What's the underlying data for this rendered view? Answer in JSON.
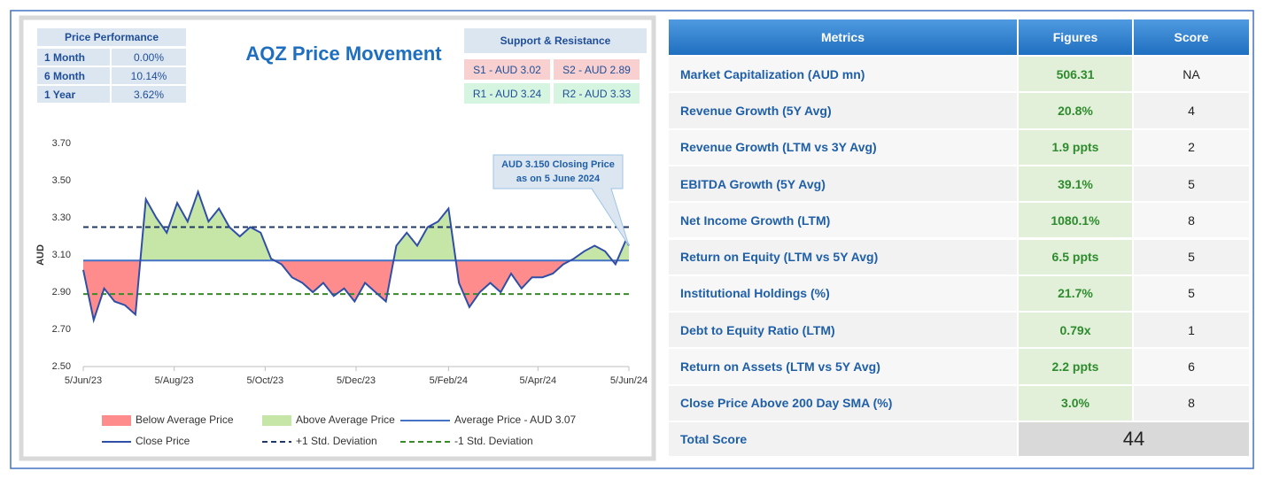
{
  "chart_data": {
    "type": "line",
    "title": "AQZ Price Movement",
    "ylabel": "AUD",
    "x": [
      "5/Jun/23",
      "12/Jun/23",
      "19/Jun/23",
      "26/Jun/23",
      "3/Jul/23",
      "10/Jul/23",
      "17/Jul/23",
      "24/Jul/23",
      "31/Jul/23",
      "7/Aug/23",
      "14/Aug/23",
      "21/Aug/23",
      "28/Aug/23",
      "4/Sep/23",
      "11/Sep/23",
      "18/Sep/23",
      "25/Sep/23",
      "2/Oct/23",
      "9/Oct/23",
      "16/Oct/23",
      "23/Oct/23",
      "30/Oct/23",
      "6/Nov/23",
      "13/Nov/23",
      "20/Nov/23",
      "27/Nov/23",
      "4/Dec/23",
      "11/Dec/23",
      "18/Dec/23",
      "25/Dec/23",
      "1/Jan/24",
      "8/Jan/24",
      "15/Jan/24",
      "22/Jan/24",
      "29/Jan/24",
      "5/Feb/24",
      "12/Feb/24",
      "19/Feb/24",
      "26/Feb/24",
      "4/Mar/24",
      "11/Mar/24",
      "18/Mar/24",
      "25/Mar/24",
      "1/Apr/24",
      "8/Apr/24",
      "15/Apr/24",
      "22/Apr/24",
      "29/Apr/24",
      "6/May/24",
      "13/May/24",
      "20/May/24",
      "27/May/24",
      "3/Jun/24",
      "5/Jun/24"
    ],
    "series": [
      {
        "name": "Close Price",
        "color": "#2f4ea8",
        "values": [
          3.02,
          2.75,
          2.92,
          2.85,
          2.83,
          2.78,
          3.4,
          3.3,
          3.22,
          3.38,
          3.28,
          3.44,
          3.28,
          3.35,
          3.25,
          3.2,
          3.25,
          3.22,
          3.08,
          3.05,
          2.98,
          2.95,
          2.9,
          2.95,
          2.88,
          2.92,
          2.85,
          2.95,
          2.9,
          2.85,
          3.15,
          3.22,
          3.15,
          3.25,
          3.28,
          3.35,
          2.95,
          2.82,
          2.9,
          2.95,
          2.9,
          3.0,
          2.92,
          2.98,
          2.98,
          3.0,
          3.05,
          3.08,
          3.12,
          3.15,
          3.12,
          3.05,
          3.18,
          3.15
        ]
      }
    ],
    "reference_lines": [
      {
        "name": "Average Price - AUD 3.07",
        "value": 3.07,
        "color": "#4472c4",
        "dash": false
      },
      {
        "name": "+1 Std. Deviation",
        "value": 3.25,
        "color": "#1f3864",
        "dash": true
      },
      {
        "name": "-1 Std. Deviation",
        "value": 2.89,
        "color": "#3a8a2a",
        "dash": true
      }
    ],
    "fills": [
      {
        "name": "Below Average Price",
        "color": "#ff8c8c",
        "side": "below"
      },
      {
        "name": "Above Average Price",
        "color": "#c6e6a8",
        "side": "above"
      }
    ],
    "xlim": [
      "5/Jun/23",
      "5/Jun/24"
    ],
    "xticks": [
      "5/Jun/23",
      "5/Aug/23",
      "5/Oct/23",
      "5/Dec/23",
      "5/Feb/24",
      "5/Apr/24",
      "5/Jun/24"
    ],
    "ylim": [
      2.5,
      3.7
    ],
    "yticks": [
      {
        "value": 2.5,
        "label": "2.50"
      },
      {
        "value": 2.7,
        "label": "2.70"
      },
      {
        "value": 2.9,
        "label": "2.90"
      },
      {
        "value": 3.1,
        "label": "3.10"
      },
      {
        "value": 3.3,
        "label": "3.30"
      },
      {
        "value": 3.5,
        "label": "3.50"
      },
      {
        "value": 3.7,
        "label": "3.70"
      }
    ],
    "annotation": {
      "lines": [
        "AUD 3.150 Closing Price",
        "as on 5 June 2024"
      ],
      "x_index": 53
    }
  },
  "price_performance": {
    "title": "Price Performance",
    "rows": [
      [
        "1 Month",
        "0.00%"
      ],
      [
        "6 Month",
        "10.14%"
      ],
      [
        "1 Year",
        "3.62%"
      ]
    ]
  },
  "support_resistance": {
    "title": "Support & Resistance",
    "rows": [
      [
        "S1 - AUD 3.02",
        "S2 - AUD 2.89"
      ],
      [
        "R1 - AUD 3.24",
        "R2 - AUD 3.33"
      ]
    ]
  },
  "metrics": {
    "header": [
      "Metrics",
      "Figures",
      "Score"
    ],
    "rows": [
      [
        "Market Capitalization (AUD mn)",
        "506.31",
        "NA"
      ],
      [
        "Revenue Growth (5Y Avg)",
        "20.8%",
        4
      ],
      [
        "Revenue Growth (LTM vs 3Y Avg)",
        "1.9 ppts",
        2
      ],
      [
        "EBITDA Growth (5Y Avg)",
        "39.1%",
        5
      ],
      [
        "Net Income Growth (LTM)",
        "1080.1%",
        8
      ],
      [
        "Return on Equity (LTM vs 5Y Avg)",
        "6.5 ppts",
        5
      ],
      [
        "Institutional Holdings (%)",
        "21.7%",
        5
      ],
      [
        "Debt to Equity Ratio (LTM)",
        "0.79x",
        1
      ],
      [
        "Return on Assets (LTM vs 5Y Avg)",
        "2.2 ppts",
        6
      ],
      [
        "Close Price Above 200 Day SMA (%)",
        "3.0%",
        8
      ]
    ],
    "total": {
      "label": "Total Score",
      "value": 44
    }
  }
}
